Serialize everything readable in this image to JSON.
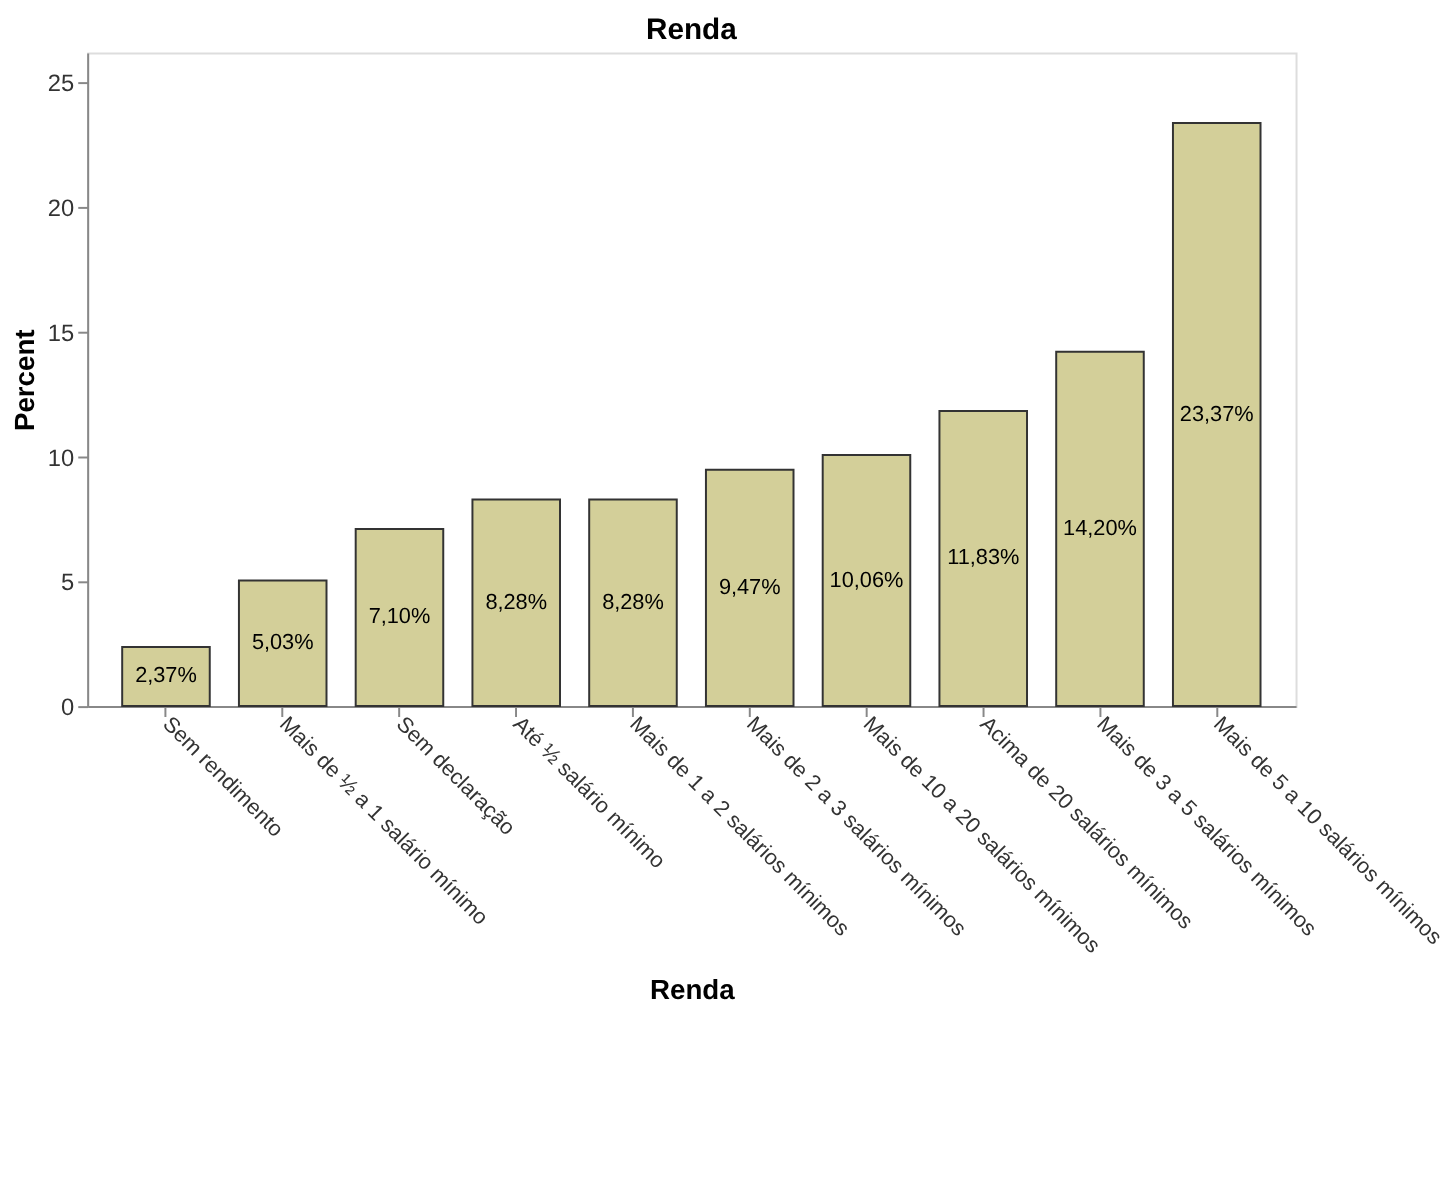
{
  "chart_data": {
    "type": "bar",
    "title": "Renda",
    "xlabel": "Renda",
    "ylabel": "Percent",
    "categories": [
      "Sem rendimento",
      "Mais de ½ a 1 salário mínimo",
      "Sem declaração",
      "Até ½ salário mínimo",
      "Mais de 1 a 2 salários mínimos",
      "Mais de 2 a 3 salários mínimos",
      "Mais de 10 a 20 salários mínimos",
      "Acima de 20 salários mínimos",
      "Mais de 3 a 5 salários mínimos",
      "Mais de 5 a 10 salários mínimos"
    ],
    "values": [
      2.37,
      5.03,
      7.1,
      8.28,
      8.28,
      9.47,
      10.06,
      11.83,
      14.2,
      23.37
    ],
    "value_labels": [
      "2,37%",
      "5,03%",
      "7,10%",
      "8,28%",
      "8,28%",
      "9,47%",
      "10,06%",
      "11,83%",
      "14,20%",
      "23,37%"
    ],
    "color": "#d3cf99",
    "ylim": [
      0,
      26.2
    ],
    "yticks": [
      0,
      5,
      10,
      15,
      20,
      25
    ],
    "grid": false
  }
}
